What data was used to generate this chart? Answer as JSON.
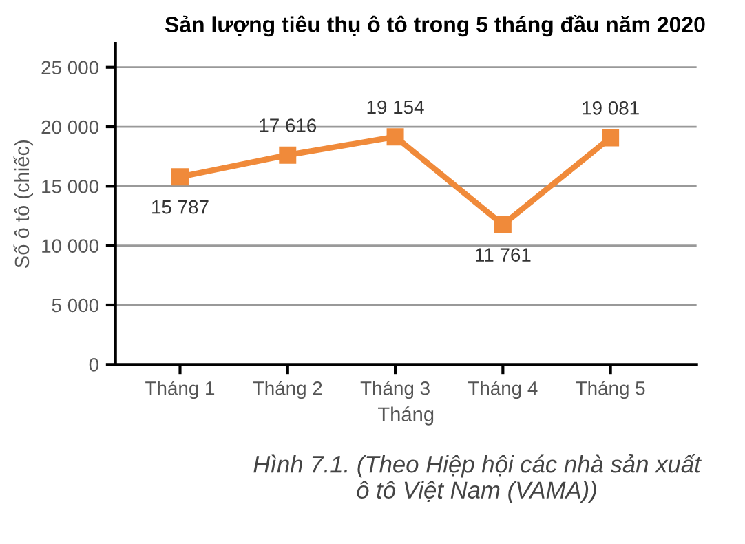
{
  "chart_data": {
    "type": "line",
    "title": "Sản lượng tiêu thụ ô tô trong 5 tháng đầu năm 2020",
    "xlabel": "Tháng",
    "ylabel": "Số ô tô (chiếc)",
    "categories": [
      "Tháng 1",
      "Tháng 2",
      "Tháng 3",
      "Tháng 4",
      "Tháng 5"
    ],
    "series": [
      {
        "color": "#f08a3a",
        "values": [
          15787,
          17616,
          19154,
          11761,
          19081
        ],
        "value_labels": [
          "15 787",
          "17 616",
          "19 154",
          "11 761",
          "19 081"
        ]
      }
    ],
    "ylim": [
      0,
      27000
    ],
    "yticks": [
      0,
      {
        "value": 5000,
        "label": "5 000"
      },
      {
        "value": 10000,
        "label": "10 000"
      },
      {
        "value": 15000,
        "label": "15 000"
      },
      {
        "value": 20000,
        "label": "20 000"
      },
      {
        "value": 25000,
        "label": "25 000"
      }
    ],
    "grid": "y",
    "marker": "square",
    "line_style": "solid",
    "legend": false,
    "annotations": [
      "Hình 7.1. (Theo Hiệp hội các nhà sản xuất\nô tô Việt Nam (VAMA))"
    ]
  }
}
